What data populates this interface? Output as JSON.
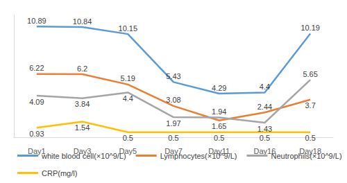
{
  "chart_data": {
    "type": "line",
    "categories": [
      "Day1",
      "Day3",
      "Day5",
      "Day7",
      "Day11",
      "Day16",
      "Day18"
    ],
    "series": [
      {
        "name": "white blood cell(×10^9/L)",
        "color": "#5b9bd5",
        "values": [
          10.89,
          10.84,
          10.15,
          5.43,
          4.29,
          4.4,
          10.19
        ]
      },
      {
        "name": "Lymphocytes(×10^9/L)",
        "color": "#ed7d31",
        "values": [
          6.22,
          6.2,
          5.19,
          3.08,
          1.65,
          2.44,
          3.7
        ]
      },
      {
        "name": "Neutrophils(×10^9/L)",
        "color": "#a5a5a5",
        "values": [
          4.09,
          3.84,
          4.4,
          1.97,
          1.94,
          1.43,
          5.65
        ]
      },
      {
        "name": "CRP(mg/l)",
        "color": "#ffc000",
        "values": [
          0.93,
          1.54,
          0.5,
          0.5,
          0.5,
          0.5,
          0.5
        ]
      }
    ],
    "ylim": [
      0,
      12
    ],
    "grid": false,
    "legend": "bottom",
    "data_labels": true,
    "tick_labels": "x"
  }
}
